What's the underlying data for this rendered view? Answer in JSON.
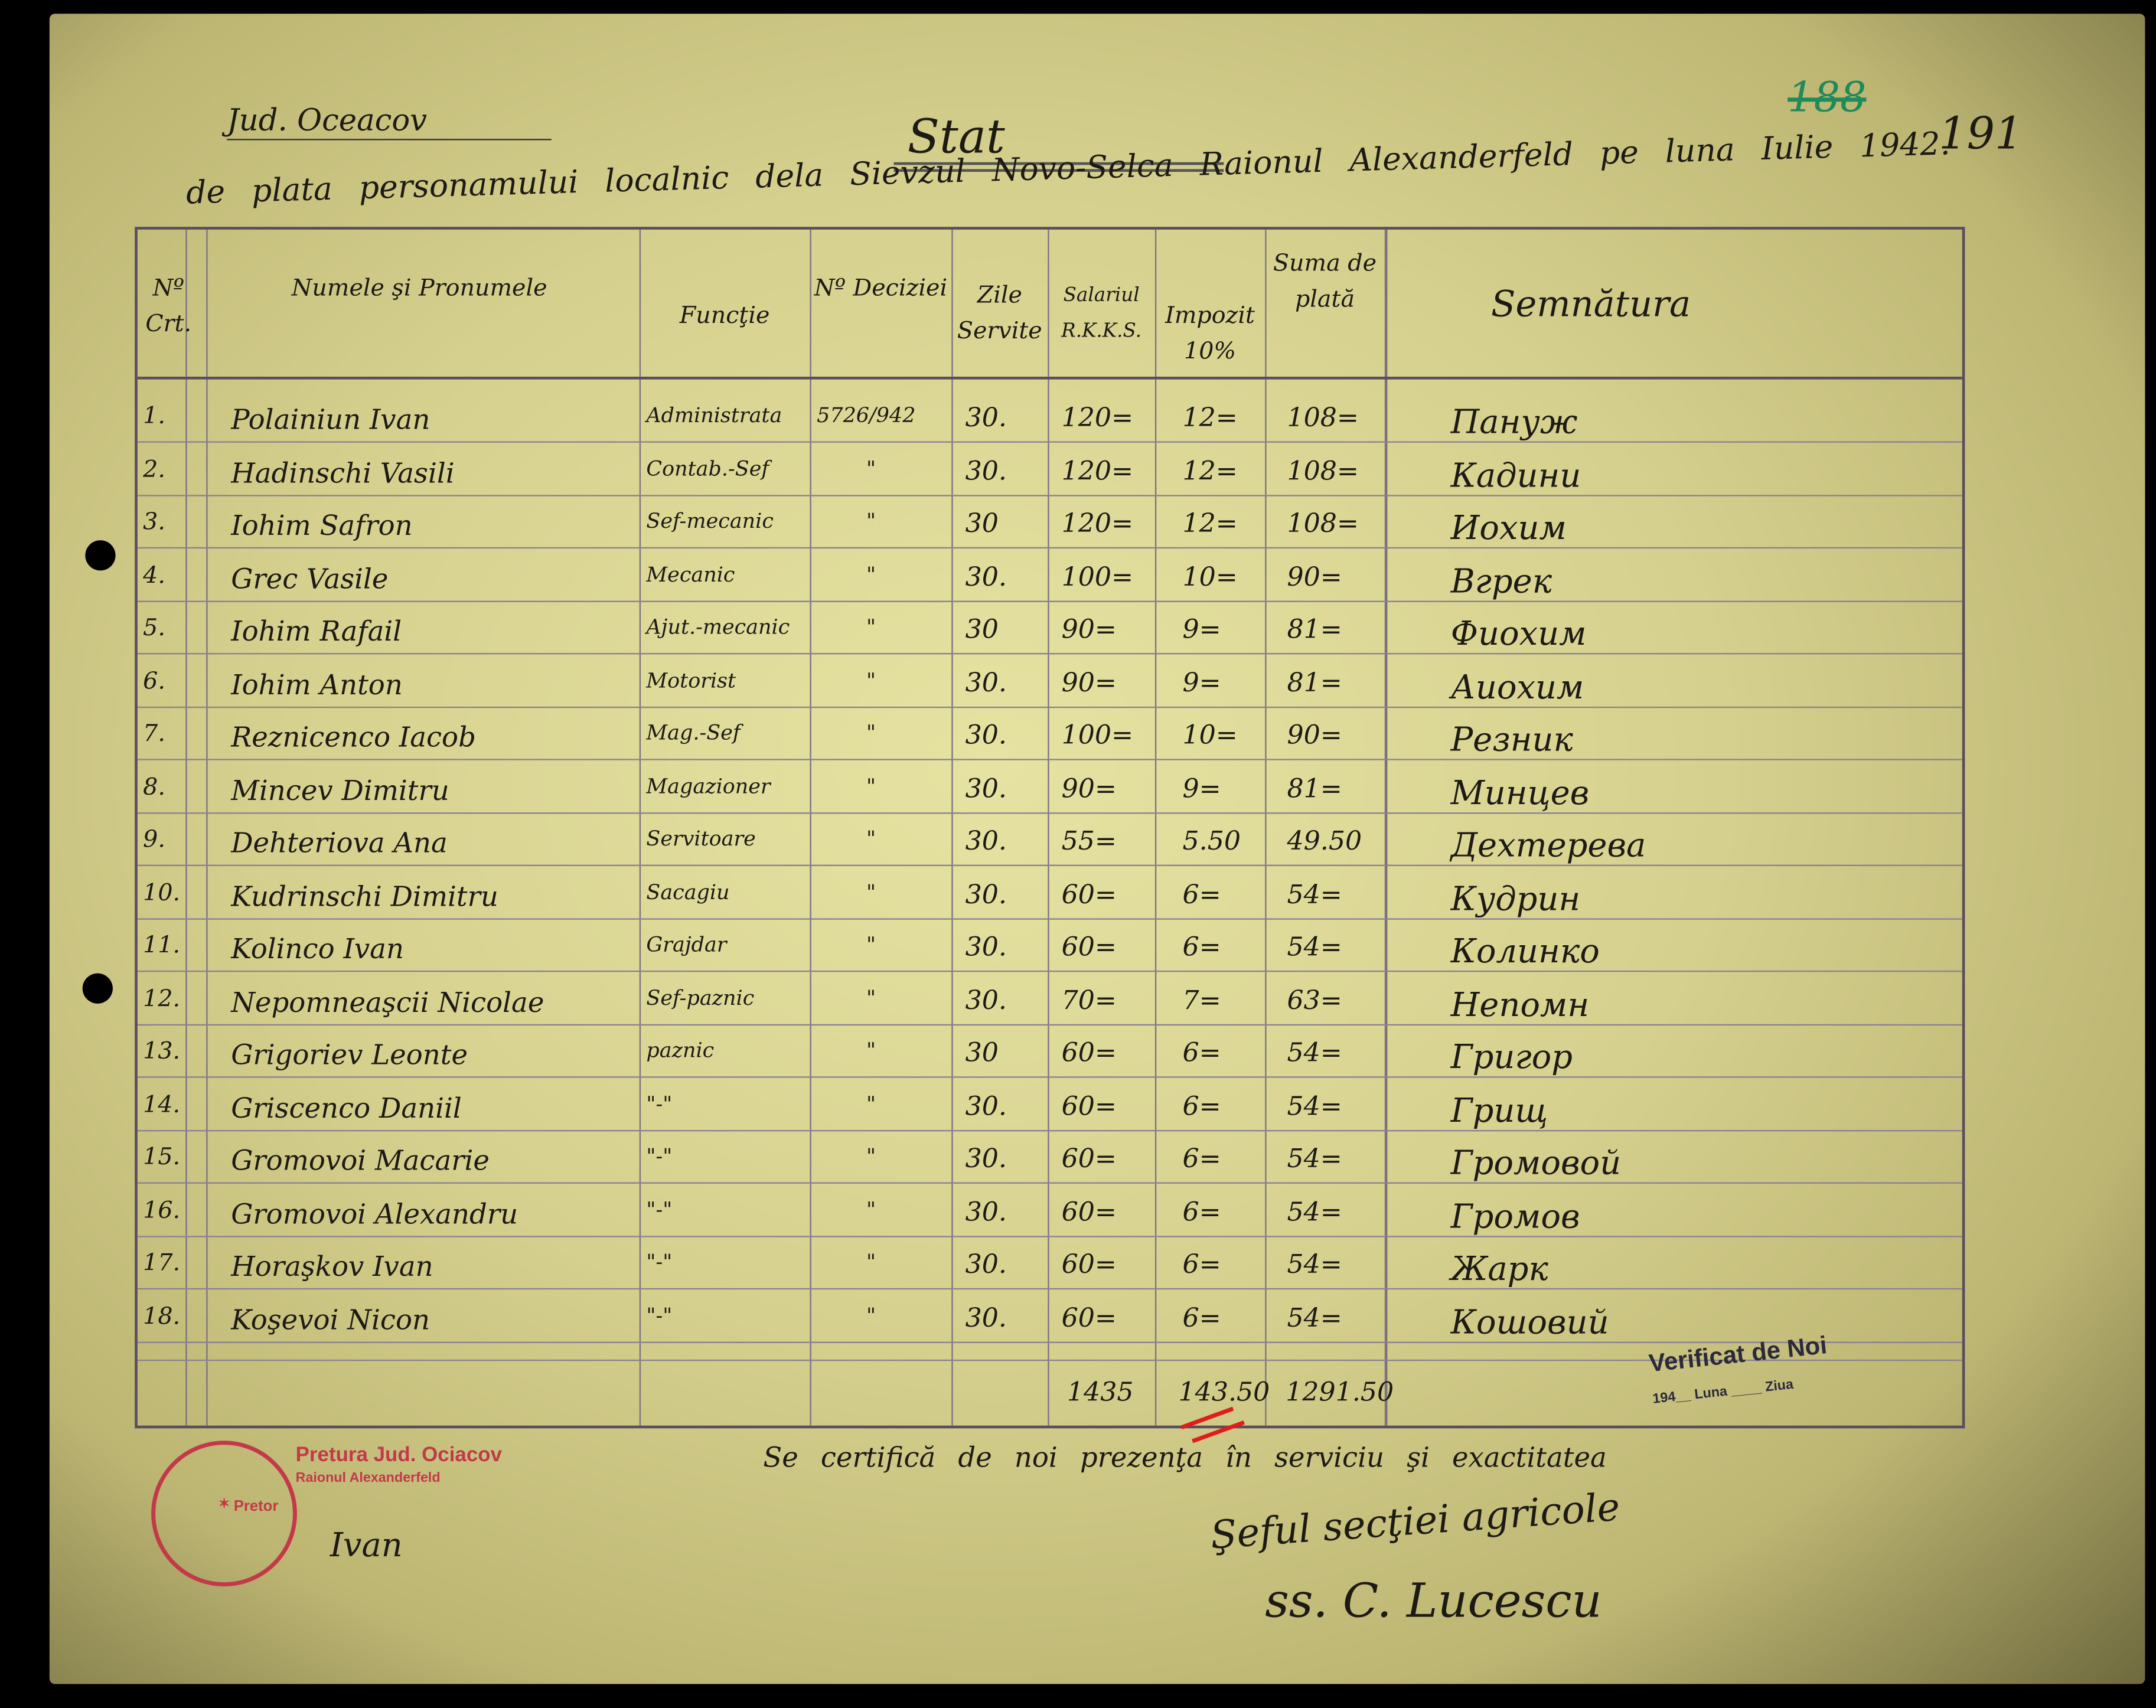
{
  "header": {
    "county": "Jud. Oceacov",
    "title": "Stat",
    "subtitle": "de plata personamului localnic dela Sievzul Novo-Selca Raionul Alexanderfeld pe luna Iulie 1942.",
    "folio_old": "188",
    "folio": "191"
  },
  "columns": {
    "nr": "Nº Crt.",
    "name": "Numele şi Pronumele",
    "function": "Funcţie",
    "decision": "Nº Deciziei",
    "days": "Zile Servite",
    "salary": "Salariul R.K.K.S.",
    "tax": "Impozit 10%",
    "net": "Suma de plată",
    "signature": "Semnătura"
  },
  "rows": [
    {
      "nr": "1.",
      "name": "Polainiun Ivan",
      "function": "Administrata",
      "decision": "5726/942",
      "days": "30.",
      "salary": "120=",
      "tax": "12=",
      "net": "108=",
      "signature": "Пануж"
    },
    {
      "nr": "2.",
      "name": "Hadinschi Vasili",
      "function": "Contab.-Sef",
      "decision": "\"",
      "days": "30.",
      "salary": "120=",
      "tax": "12=",
      "net": "108=",
      "signature": "Кадини"
    },
    {
      "nr": "3.",
      "name": "Iohim Safron",
      "function": "Sef-mecanic",
      "decision": "\"",
      "days": "30",
      "salary": "120=",
      "tax": "12=",
      "net": "108=",
      "signature": "Иохим"
    },
    {
      "nr": "4.",
      "name": "Grec Vasile",
      "function": "Mecanic",
      "decision": "\"",
      "days": "30.",
      "salary": "100=",
      "tax": "10=",
      "net": "90=",
      "signature": "Вгрек"
    },
    {
      "nr": "5.",
      "name": "Iohim Rafail",
      "function": "Ajut.-mecanic",
      "decision": "\"",
      "days": "30",
      "salary": "90=",
      "tax": "9=",
      "net": "81=",
      "signature": "Фиохим"
    },
    {
      "nr": "6.",
      "name": "Iohim Anton",
      "function": "Motorist",
      "decision": "\"",
      "days": "30.",
      "salary": "90=",
      "tax": "9=",
      "net": "81=",
      "signature": "Аиохим"
    },
    {
      "nr": "7.",
      "name": "Reznicenco Iacob",
      "function": "Mag.-Sef",
      "decision": "\"",
      "days": "30.",
      "salary": "100=",
      "tax": "10=",
      "net": "90=",
      "signature": "Резник"
    },
    {
      "nr": "8.",
      "name": "Mincev Dimitru",
      "function": "Magazioner",
      "decision": "\"",
      "days": "30.",
      "salary": "90=",
      "tax": "9=",
      "net": "81=",
      "signature": "Минцев"
    },
    {
      "nr": "9.",
      "name": "Dehteriova Ana",
      "function": "Servitoare",
      "decision": "\"",
      "days": "30.",
      "salary": "55=",
      "tax": "5.50",
      "net": "49.50",
      "signature": "Дехтерева"
    },
    {
      "nr": "10.",
      "name": "Kudrinschi Dimitru",
      "function": "Sacagiu",
      "decision": "\"",
      "days": "30.",
      "salary": "60=",
      "tax": "6=",
      "net": "54=",
      "signature": "Кудрин"
    },
    {
      "nr": "11.",
      "name": "Kolinco Ivan",
      "function": "Grajdar",
      "decision": "\"",
      "days": "30.",
      "salary": "60=",
      "tax": "6=",
      "net": "54=",
      "signature": "Колинко"
    },
    {
      "nr": "12.",
      "name": "Nepomneaşcii Nicolae",
      "function": "Sef-paznic",
      "decision": "\"",
      "days": "30.",
      "salary": "70=",
      "tax": "7=",
      "net": "63=",
      "signature": "Непомн"
    },
    {
      "nr": "13.",
      "name": "Grigoriev Leonte",
      "function": "paznic",
      "decision": "\"",
      "days": "30",
      "salary": "60=",
      "tax": "6=",
      "net": "54=",
      "signature": "Григор"
    },
    {
      "nr": "14.",
      "name": "Griscenco Daniil",
      "function": "\"-\"",
      "decision": "\"",
      "days": "30.",
      "salary": "60=",
      "tax": "6=",
      "net": "54=",
      "signature": "Грищ"
    },
    {
      "nr": "15.",
      "name": "Gromovoi Macarie",
      "function": "\"-\"",
      "decision": "\"",
      "days": "30.",
      "salary": "60=",
      "tax": "6=",
      "net": "54=",
      "signature": "Громовой"
    },
    {
      "nr": "16.",
      "name": "Gromovoi Alexandru",
      "function": "\"-\"",
      "decision": "\"",
      "days": "30.",
      "salary": "60=",
      "tax": "6=",
      "net": "54=",
      "signature": "Громов"
    },
    {
      "nr": "17.",
      "name": "Horaşkov Ivan",
      "function": "\"-\"",
      "decision": "\"",
      "days": "30.",
      "salary": "60=",
      "tax": "6=",
      "net": "54=",
      "signature": "Жарк"
    },
    {
      "nr": "18.",
      "name": "Koşevoi Nicon",
      "function": "\"-\"",
      "decision": "\"",
      "days": "30.",
      "salary": "60=",
      "tax": "6=",
      "net": "54=",
      "signature": "Кошовий"
    }
  ],
  "totals": {
    "salary": "1435",
    "tax": "143.50",
    "net": "1291.50"
  },
  "verification": {
    "title": "Verificat de Noi",
    "date_line": "194__ Luna ____ Ziua"
  },
  "footer": {
    "certification": "Se certifică de noi prezenţa în serviciu şi exactitatea",
    "chief": "Şeful secţiei agricole",
    "chief_signature": "ss. C. Lucescu",
    "stamp_text": "Pretura Jud. Ociacov",
    "stamp_raion": "Raionul Alexanderfeld",
    "stamp_pretor": "Pretor",
    "pretor_signature": "Ivan"
  },
  "colors": {
    "paper": "#d6d08e",
    "ink": "#1d1a14",
    "stamp": "#c23a4a",
    "folio_green": "#1f8a5a",
    "red_mark": "#e01c1c"
  }
}
